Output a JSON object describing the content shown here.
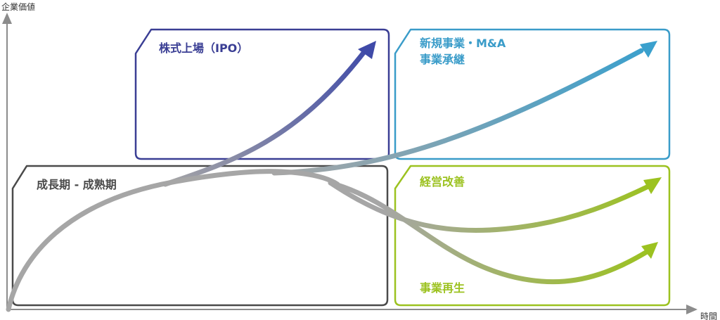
{
  "axes": {
    "y_label": "企業価値",
    "x_label": "時間",
    "color": "#8c8c8c"
  },
  "boxes": {
    "growth": {
      "label": "成長期 - 成熟期",
      "color": "#4a4a4a"
    },
    "ipo": {
      "label": "株式上場（IPO）",
      "color": "#3a3e94"
    },
    "new_business": {
      "label_line1": "新規事業・M&A",
      "label_line2": "事業承継",
      "color": "#3a9cc9"
    },
    "management": {
      "label": "経営改善",
      "color": "#9cc220"
    },
    "revitalization": {
      "label": "事業再生",
      "color": "#9cc220"
    }
  },
  "paths": {
    "base_color": "#a6a6a6",
    "ipo_color": "#3f4aa8",
    "new_business_color": "#3aa0cd",
    "management_color": "#9cc220",
    "revitalization_color": "#9cc220"
  }
}
